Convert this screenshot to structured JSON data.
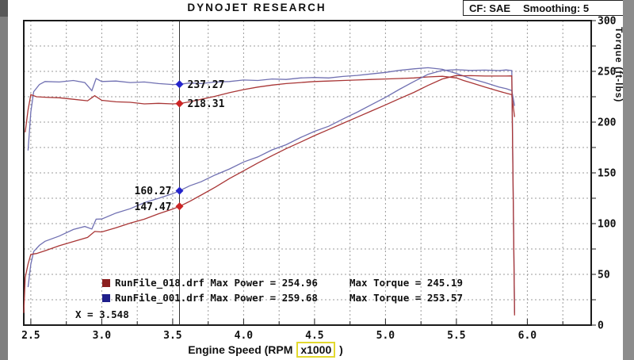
{
  "header": {
    "title": "DYNOJET RESEARCH",
    "cf": "CF: SAE",
    "smoothing": "Smoothing: 5"
  },
  "chart_data": {
    "type": "line",
    "title": "DYNOJET RESEARCH",
    "x_axis": {
      "label_prefix": "Engine Speed (RPM",
      "label_highlight": "x1000",
      "label_suffix": ")",
      "ticks": [
        2.5,
        3.0,
        3.5,
        4.0,
        4.5,
        5.0,
        5.5,
        6.0
      ],
      "plot_range": [
        2.45,
        6.45
      ],
      "grid_step": 0.25
    },
    "torque_axis": {
      "label": "Torque (ft-lbs)",
      "range": [
        0,
        300
      ],
      "ticks": [
        0,
        50,
        100,
        150,
        200,
        250,
        300
      ],
      "grid_step": 25,
      "side": "right"
    },
    "power_axis": {
      "range": [
        50,
        300
      ],
      "side": "left",
      "labels_visible": false
    },
    "cursor": {
      "x": 3.548,
      "label": "X = 3.548",
      "readouts": [
        {
          "id": "torque-run001",
          "axis": "torque",
          "value": 237.27,
          "label": "237.27",
          "color": "#2424cc",
          "side": "right"
        },
        {
          "id": "torque-run018",
          "axis": "torque",
          "value": 218.31,
          "label": "218.31",
          "color": "#cc2424",
          "side": "right"
        },
        {
          "id": "power-run001",
          "axis": "power",
          "value": 160.27,
          "label": "160.27",
          "color": "#2424cc",
          "side": "left"
        },
        {
          "id": "power-run018",
          "axis": "power",
          "value": 147.47,
          "label": "147.47",
          "color": "#cc2424",
          "side": "left"
        }
      ]
    },
    "legend": [
      {
        "run": "RunFile_018.drf",
        "max_power": 254.96,
        "max_torque": 245.19,
        "color": "#8b1f1f",
        "text1": "RunFile_018.drf Max Power = 254.96",
        "text2": "Max Torque = 245.19"
      },
      {
        "run": "RunFile_001.drf",
        "max_power": 259.68,
        "max_torque": 253.57,
        "color": "#1f1f8b",
        "text1": "RunFile_001.drf Max Power = 259.68",
        "text2": "Max Torque = 253.57"
      }
    ],
    "series": [
      {
        "id": "run001_torque",
        "name": "RunFile_001.drf Torque",
        "axis": "torque",
        "color": "#7070b2",
        "points": [
          [
            2.48,
            172
          ],
          [
            2.5,
            210
          ],
          [
            2.52,
            230
          ],
          [
            2.56,
            237
          ],
          [
            2.6,
            240
          ],
          [
            2.7,
            239.5
          ],
          [
            2.8,
            241
          ],
          [
            2.88,
            239
          ],
          [
            2.93,
            231
          ],
          [
            2.96,
            243
          ],
          [
            3.0,
            240
          ],
          [
            3.1,
            240.5
          ],
          [
            3.2,
            239
          ],
          [
            3.3,
            239.5
          ],
          [
            3.4,
            238
          ],
          [
            3.5,
            237
          ],
          [
            3.548,
            237.27
          ],
          [
            3.62,
            238.5
          ],
          [
            3.7,
            238
          ],
          [
            3.8,
            239.5
          ],
          [
            3.9,
            240
          ],
          [
            4.0,
            241.5
          ],
          [
            4.1,
            241
          ],
          [
            4.2,
            242.5
          ],
          [
            4.3,
            242
          ],
          [
            4.4,
            243.5
          ],
          [
            4.5,
            244
          ],
          [
            4.6,
            243.5
          ],
          [
            4.7,
            245
          ],
          [
            4.8,
            246
          ],
          [
            4.9,
            247.5
          ],
          [
            5.0,
            249
          ],
          [
            5.1,
            251
          ],
          [
            5.2,
            252.5
          ],
          [
            5.3,
            253.57
          ],
          [
            5.4,
            252
          ],
          [
            5.5,
            248
          ],
          [
            5.6,
            243
          ],
          [
            5.7,
            239
          ],
          [
            5.8,
            234.5
          ],
          [
            5.85,
            233
          ],
          [
            5.89,
            231
          ],
          [
            5.91,
            216
          ]
        ]
      },
      {
        "id": "run018_torque",
        "name": "RunFile_018.drf Torque",
        "axis": "torque",
        "color": "#a93636",
        "points": [
          [
            2.46,
            190
          ],
          [
            2.48,
            212
          ],
          [
            2.5,
            227
          ],
          [
            2.54,
            225
          ],
          [
            2.6,
            224.5
          ],
          [
            2.7,
            224
          ],
          [
            2.8,
            222.5
          ],
          [
            2.9,
            221
          ],
          [
            2.95,
            226
          ],
          [
            3.0,
            221.5
          ],
          [
            3.1,
            220
          ],
          [
            3.2,
            219.5
          ],
          [
            3.3,
            218
          ],
          [
            3.4,
            218.5
          ],
          [
            3.5,
            218
          ],
          [
            3.548,
            218.31
          ],
          [
            3.62,
            220
          ],
          [
            3.7,
            222.5
          ],
          [
            3.8,
            225.5
          ],
          [
            3.9,
            229
          ],
          [
            4.0,
            232
          ],
          [
            4.1,
            234.5
          ],
          [
            4.2,
            236.5
          ],
          [
            4.3,
            238
          ],
          [
            4.4,
            239
          ],
          [
            4.5,
            240
          ],
          [
            4.6,
            240.5
          ],
          [
            4.7,
            241
          ],
          [
            4.8,
            241.5
          ],
          [
            4.9,
            242
          ],
          [
            5.0,
            242.5
          ],
          [
            5.1,
            243
          ],
          [
            5.2,
            243.5
          ],
          [
            5.3,
            244.5
          ],
          [
            5.4,
            245.19
          ],
          [
            5.5,
            243.5
          ],
          [
            5.55,
            241
          ],
          [
            5.6,
            239
          ],
          [
            5.7,
            234.5
          ],
          [
            5.8,
            230.5
          ],
          [
            5.85,
            228.5
          ],
          [
            5.89,
            227
          ],
          [
            5.91,
            205
          ]
        ]
      },
      {
        "id": "run001_power",
        "name": "RunFile_001.drf Power",
        "axis": "power",
        "color": "#7070b2",
        "points": [
          [
            2.48,
            81.2
          ],
          [
            2.5,
            100
          ],
          [
            2.52,
            110.4
          ],
          [
            2.56,
            115.5
          ],
          [
            2.6,
            118.8
          ],
          [
            2.7,
            123.1
          ],
          [
            2.8,
            128.5
          ],
          [
            2.88,
            131
          ],
          [
            2.93,
            128.9
          ],
          [
            2.96,
            137
          ],
          [
            3.0,
            137.1
          ],
          [
            3.1,
            142
          ],
          [
            3.2,
            145.6
          ],
          [
            3.3,
            150.5
          ],
          [
            3.4,
            154.1
          ],
          [
            3.5,
            157.9
          ],
          [
            3.548,
            160.27
          ],
          [
            3.62,
            164.4
          ],
          [
            3.7,
            167.7
          ],
          [
            3.8,
            173.3
          ],
          [
            3.9,
            178.2
          ],
          [
            4.0,
            183.9
          ],
          [
            4.1,
            188.1
          ],
          [
            4.2,
            193.9
          ],
          [
            4.3,
            198.1
          ],
          [
            4.4,
            204
          ],
          [
            4.5,
            209.1
          ],
          [
            4.6,
            213.3
          ],
          [
            4.7,
            219.2
          ],
          [
            4.8,
            224.8
          ],
          [
            4.9,
            230.9
          ],
          [
            5.0,
            237
          ],
          [
            5.1,
            243.7
          ],
          [
            5.2,
            250
          ],
          [
            5.3,
            255.9
          ],
          [
            5.4,
            259.1
          ],
          [
            5.5,
            259.68
          ],
          [
            5.6,
            259.1
          ],
          [
            5.7,
            259.4
          ],
          [
            5.8,
            259
          ],
          [
            5.85,
            259.5
          ],
          [
            5.89,
            259
          ],
          [
            5.91,
            60
          ]
        ]
      },
      {
        "id": "run018_power",
        "name": "RunFile_018.drf Power",
        "axis": "power",
        "color": "#a93636",
        "points": [
          [
            2.45,
            60
          ],
          [
            2.46,
            89
          ],
          [
            2.48,
            100.1
          ],
          [
            2.5,
            108.1
          ],
          [
            2.54,
            108.8
          ],
          [
            2.6,
            111.1
          ],
          [
            2.7,
            115.2
          ],
          [
            2.8,
            118.6
          ],
          [
            2.9,
            122
          ],
          [
            2.95,
            126.9
          ],
          [
            3.0,
            126.5
          ],
          [
            3.1,
            129.9
          ],
          [
            3.2,
            133.7
          ],
          [
            3.3,
            137
          ],
          [
            3.4,
            141.4
          ],
          [
            3.5,
            145.3
          ],
          [
            3.548,
            147.47
          ],
          [
            3.62,
            151.6
          ],
          [
            3.7,
            156.8
          ],
          [
            3.8,
            163.2
          ],
          [
            3.9,
            170.3
          ],
          [
            4.0,
            176.7
          ],
          [
            4.1,
            183.1
          ],
          [
            4.2,
            189.1
          ],
          [
            4.3,
            194.9
          ],
          [
            4.4,
            200.2
          ],
          [
            4.5,
            205.6
          ],
          [
            4.6,
            210.6
          ],
          [
            4.7,
            215.7
          ],
          [
            4.8,
            220.7
          ],
          [
            4.9,
            225.8
          ],
          [
            5.0,
            230.8
          ],
          [
            5.1,
            236
          ],
          [
            5.2,
            241.1
          ],
          [
            5.3,
            246.8
          ],
          [
            5.4,
            252.1
          ],
          [
            5.5,
            254.96
          ],
          [
            5.55,
            254.7
          ],
          [
            5.6,
            254.8
          ],
          [
            5.7,
            254.5
          ],
          [
            5.8,
            254.5
          ],
          [
            5.85,
            254.5
          ],
          [
            5.89,
            254.6
          ],
          [
            5.91,
            58
          ]
        ]
      }
    ]
  }
}
